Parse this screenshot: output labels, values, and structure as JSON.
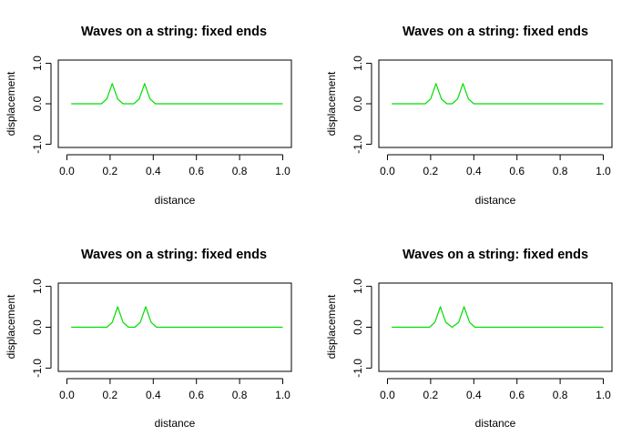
{
  "window": {
    "background": "#ffffff"
  },
  "chart_data": [
    {
      "type": "line",
      "title": "Waves on a string: fixed ends",
      "xlabel": "distance",
      "ylabel": "displacement",
      "xlim": [
        0,
        1
      ],
      "ylim": [
        -1,
        1
      ],
      "xticks": [
        "0.0",
        "0.2",
        "0.4",
        "0.6",
        "0.8",
        "1.0"
      ],
      "yticks": [
        "-1.0",
        "0.0",
        "1.0"
      ],
      "grid": false,
      "series": [
        {
          "color": "#00dd00",
          "x": [
            0.02,
            0.16,
            0.185,
            0.21,
            0.235,
            0.26,
            0.285,
            0.31,
            0.335,
            0.36,
            0.385,
            0.41,
            0.435,
            0.46,
            1.0
          ],
          "y": [
            0,
            0,
            0.12,
            0.5,
            0.12,
            0,
            0,
            0,
            0.12,
            0.5,
            0.12,
            0,
            0,
            0,
            0
          ]
        }
      ]
    },
    {
      "type": "line",
      "title": "Waves on a string: fixed ends",
      "xlabel": "distance",
      "ylabel": "displacement",
      "xlim": [
        0,
        1
      ],
      "ylim": [
        -1,
        1
      ],
      "xticks": [
        "0.0",
        "0.2",
        "0.4",
        "0.6",
        "0.8",
        "1.0"
      ],
      "yticks": [
        "-1.0",
        "0.0",
        "1.0"
      ],
      "grid": false,
      "series": [
        {
          "color": "#00dd00",
          "x": [
            0.02,
            0.175,
            0.2,
            0.225,
            0.25,
            0.275,
            0.3,
            0.325,
            0.35,
            0.375,
            0.4,
            0.425,
            0.45,
            1.0
          ],
          "y": [
            0,
            0,
            0.12,
            0.5,
            0.12,
            0,
            0,
            0.12,
            0.5,
            0.12,
            0,
            0,
            0,
            0
          ]
        }
      ]
    },
    {
      "type": "line",
      "title": "Waves on a string: fixed ends",
      "xlabel": "distance",
      "ylabel": "displacement",
      "xlim": [
        0,
        1
      ],
      "ylim": [
        -1,
        1
      ],
      "xticks": [
        "0.0",
        "0.2",
        "0.4",
        "0.6",
        "0.8",
        "1.0"
      ],
      "yticks": [
        "-1.0",
        "0.0",
        "1.0"
      ],
      "grid": false,
      "series": [
        {
          "color": "#00dd00",
          "x": [
            0.02,
            0.185,
            0.21,
            0.235,
            0.26,
            0.285,
            0.3,
            0.315,
            0.34,
            0.365,
            0.39,
            0.415,
            1.0
          ],
          "y": [
            0,
            0,
            0.12,
            0.5,
            0.12,
            0,
            0,
            0,
            0.12,
            0.5,
            0.12,
            0,
            0
          ]
        }
      ]
    },
    {
      "type": "line",
      "title": "Waves on a string: fixed ends",
      "xlabel": "distance",
      "ylabel": "displacement",
      "xlim": [
        0,
        1
      ],
      "ylim": [
        -1,
        1
      ],
      "xticks": [
        "0.0",
        "0.2",
        "0.4",
        "0.6",
        "0.8",
        "1.0"
      ],
      "yticks": [
        "-1.0",
        "0.0",
        "1.0"
      ],
      "grid": false,
      "series": [
        {
          "color": "#00dd00",
          "x": [
            0.02,
            0.195,
            0.22,
            0.245,
            0.27,
            0.3,
            0.33,
            0.355,
            0.38,
            0.405,
            1.0
          ],
          "y": [
            0,
            0,
            0.12,
            0.5,
            0.12,
            0,
            0.12,
            0.5,
            0.12,
            0,
            0
          ]
        }
      ]
    }
  ]
}
